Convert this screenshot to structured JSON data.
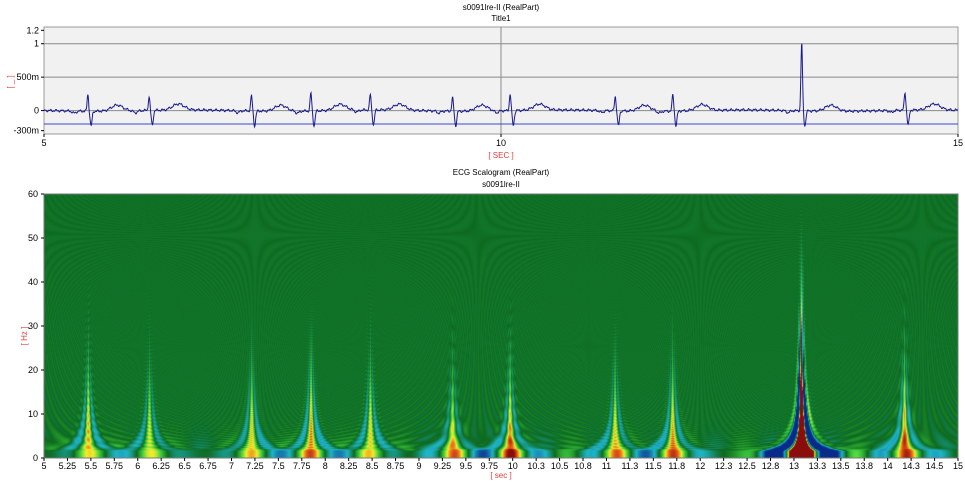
{
  "chart_data": [
    {
      "type": "line",
      "title": "s0091lre-II (RealPart)",
      "subtitle": "Title1",
      "xlabel": "[ SEC ]",
      "ylabel": "[ _ ]",
      "xlim": [
        5,
        15
      ],
      "ylim": [
        -0.35,
        1.25
      ],
      "x_ticks": [
        "5",
        "10",
        "15"
      ],
      "y_ticks": [
        {
          "value": 1.2,
          "label": "1.2"
        },
        {
          "value": 1.0,
          "label": "1"
        },
        {
          "value": 0.5,
          "label": "500m"
        },
        {
          "value": 0.0,
          "label": "0"
        },
        {
          "value": -0.3,
          "label": "-300m"
        }
      ],
      "grid": {
        "vertical_at": [
          10
        ],
        "horizontal_at": [
          1.0,
          0.5,
          0.0
        ]
      },
      "series": [
        {
          "color": "#1a1a8c",
          "beat_times": [
            5.48,
            6.15,
            7.27,
            7.92,
            8.57,
            9.47,
            10.1,
            11.25,
            11.88,
            13.29,
            14.42
          ],
          "r_peak_values": [
            0.25,
            0.2,
            0.23,
            0.27,
            0.23,
            0.2,
            0.25,
            0.22,
            0.25,
            1.02,
            0.27
          ],
          "baseline": 0.0
        }
      ]
    },
    {
      "type": "heatmap",
      "title": "ECG Scalogram (RealPart)",
      "subtitle": "s0091lre-II",
      "xlabel": "[ sec ]",
      "ylabel": "[ Hz ]",
      "xlim": [
        5,
        15
      ],
      "ylim": [
        0,
        60
      ],
      "x_ticks": [
        "5",
        "5.25",
        "5.5",
        "5.75",
        "6",
        "6.25",
        "6.5",
        "6.75",
        "7",
        "7.25",
        "7.5",
        "7.75",
        "8",
        "8.25",
        "8.5",
        "8.75",
        "9",
        "9.25",
        "9.5",
        "9.75",
        "10",
        "10.3",
        "10.5",
        "10.8",
        "11",
        "11.3",
        "11.5",
        "11.8",
        "12",
        "12.3",
        "12.5",
        "12.8",
        "13",
        "13.3",
        "13.5",
        "13.8",
        "14",
        "14.3",
        "14.5",
        "15"
      ],
      "y_ticks": [
        "0",
        "10",
        "20",
        "30",
        "40",
        "50",
        "60"
      ],
      "colormap": [
        "#0a2a8a",
        "#1fb6c9",
        "#0d6a1f",
        "#3fd13f",
        "#f3ee2a",
        "#e35a18",
        "#8a0c0c"
      ],
      "hotspot": {
        "time": 13.3,
        "freq_range": [
          0,
          15
        ],
        "peak_level": "max"
      }
    }
  ]
}
